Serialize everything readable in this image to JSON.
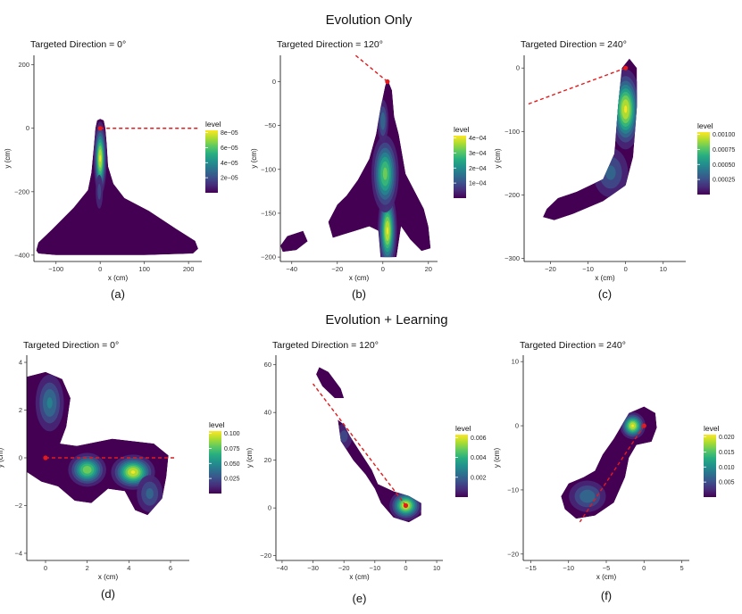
{
  "figure": {
    "section_titles": [
      "Evolution Only",
      "Evolution + Learning"
    ]
  },
  "chart_data": [
    {
      "type": "heatmap",
      "caption": "(a)",
      "title": "Targeted Direction = 0°",
      "xlabel": "x (cm)",
      "ylabel": "y (cm)",
      "xlim": [
        -150,
        230
      ],
      "ylim": [
        -420,
        230
      ],
      "xticks": [
        -100,
        0,
        100,
        200
      ],
      "yticks": [
        -400,
        -200,
        0,
        200
      ],
      "xtick_labels": [
        "−100",
        "0",
        "100",
        "200"
      ],
      "ytick_labels": [
        "−400",
        "−200",
        "0",
        "200"
      ],
      "legend": {
        "title": "level",
        "ticks": [
          "2e−05",
          "4e−05",
          "6e−05",
          "8e−05"
        ],
        "max": 9e-05
      },
      "density_region": [
        [
          -145,
          -385
        ],
        [
          -140,
          -395
        ],
        [
          -100,
          -400
        ],
        [
          0,
          -400
        ],
        [
          100,
          -400
        ],
        [
          210,
          -395
        ],
        [
          222,
          -380
        ],
        [
          215,
          -355
        ],
        [
          170,
          -315
        ],
        [
          110,
          -260
        ],
        [
          55,
          -220
        ],
        [
          30,
          -175
        ],
        [
          18,
          -120
        ],
        [
          15,
          -50
        ],
        [
          12,
          0
        ],
        [
          8,
          25
        ],
        [
          0,
          30
        ],
        [
          -7,
          25
        ],
        [
          -11,
          0
        ],
        [
          -14,
          -50
        ],
        [
          -20,
          -140
        ],
        [
          -28,
          -195
        ],
        [
          -60,
          -250
        ],
        [
          -110,
          -320
        ],
        [
          -140,
          -360
        ]
      ],
      "peaks": [
        {
          "x": 0,
          "y": -95,
          "sx": 7,
          "sy": 55,
          "level": 1.0
        },
        {
          "x": -2,
          "y": -200,
          "sx": 6,
          "sy": 40,
          "level": 0.25
        }
      ],
      "target_line": {
        "x": [
          0,
          225
        ],
        "y": [
          0,
          0
        ]
      },
      "start_point": {
        "x": 0,
        "y": 0
      }
    },
    {
      "type": "heatmap",
      "caption": "(b)",
      "title": "Targeted Direction = 120°",
      "xlabel": "x (cm)",
      "ylabel": "y (cm)",
      "xlim": [
        -45,
        24
      ],
      "ylim": [
        -205,
        30
      ],
      "xticks": [
        -40,
        -20,
        0,
        20
      ],
      "yticks": [
        -200,
        -150,
        -100,
        -50,
        0
      ],
      "xtick_labels": [
        "−40",
        "−20",
        "0",
        "20"
      ],
      "ytick_labels": [
        "−200",
        "−150",
        "−100",
        "−50",
        "0"
      ],
      "legend": {
        "title": "level",
        "ticks": [
          "1e−04",
          "2e−04",
          "3e−04",
          "4e−04"
        ],
        "max": 0.00045
      },
      "density_region": [
        [
          -6,
          -88
        ],
        [
          -3,
          -60
        ],
        [
          -1,
          -30
        ],
        [
          1,
          -5
        ],
        [
          2,
          3
        ],
        [
          4,
          -10
        ],
        [
          5,
          -40
        ],
        [
          7,
          -60
        ],
        [
          10,
          -105
        ],
        [
          14,
          -125
        ],
        [
          18,
          -145
        ],
        [
          20,
          -165
        ],
        [
          21,
          -190
        ],
        [
          17,
          -193
        ],
        [
          12,
          -180
        ],
        [
          8,
          -165
        ],
        [
          6,
          -200
        ],
        [
          -1,
          -200
        ],
        [
          -2,
          -170
        ],
        [
          -6,
          -165
        ],
        [
          -12,
          -170
        ],
        [
          -22,
          -178
        ],
        [
          -24,
          -160
        ],
        [
          -20,
          -140
        ],
        [
          -16,
          -130
        ],
        [
          -11,
          -112
        ]
      ],
      "extra_regions": [
        [
          [
            -45,
            -187
          ],
          [
            -42,
            -176
          ],
          [
            -35,
            -170
          ],
          [
            -33,
            -182
          ],
          [
            -38,
            -192
          ],
          [
            -44,
            -194
          ]
        ]
      ],
      "peaks": [
        {
          "x": 2,
          "y": -170,
          "sx": 2,
          "sy": 22,
          "level": 1.0
        },
        {
          "x": 1,
          "y": -105,
          "sx": 3,
          "sy": 22,
          "level": 0.8
        },
        {
          "x": 0,
          "y": -45,
          "sx": 1.5,
          "sy": 15,
          "level": 0.4
        }
      ],
      "target_line": {
        "x": [
          2,
          -12
        ],
        "y": [
          0,
          30
        ]
      },
      "start_point": {
        "x": 2,
        "y": 0
      }
    },
    {
      "type": "heatmap",
      "caption": "(c)",
      "title": "Targeted Direction = 240°",
      "xlabel": "x (cm)",
      "ylabel": "y (cm)",
      "xlim": [
        -27,
        16
      ],
      "ylim": [
        -305,
        20
      ],
      "xticks": [
        -20,
        -10,
        0,
        10
      ],
      "yticks": [
        -300,
        -200,
        -100,
        0
      ],
      "xtick_labels": [
        "−20",
        "−10",
        "0",
        "10"
      ],
      "ytick_labels": [
        "−300",
        "−200",
        "−100",
        "0"
      ],
      "legend": {
        "title": "level",
        "ticks": [
          "0.00025",
          "0.00050",
          "0.00075",
          "0.00100"
        ],
        "max": 0.00105
      },
      "density_region": [
        [
          -21,
          -222
        ],
        [
          -18,
          -205
        ],
        [
          -13,
          -195
        ],
        [
          -6,
          -175
        ],
        [
          -3,
          -135
        ],
        [
          -2,
          -60
        ],
        [
          -1,
          0
        ],
        [
          1,
          15
        ],
        [
          3,
          0
        ],
        [
          3,
          -60
        ],
        [
          2,
          -140
        ],
        [
          0,
          -185
        ],
        [
          -6,
          -210
        ],
        [
          -14,
          -230
        ],
        [
          -19,
          -240
        ],
        [
          -22,
          -235
        ]
      ],
      "peaks": [
        {
          "x": 0,
          "y": -65,
          "sx": 2,
          "sy": 30,
          "level": 1.0
        },
        {
          "x": -4,
          "y": -165,
          "sx": 3,
          "sy": 25,
          "level": 0.35
        }
      ],
      "target_line": {
        "x": [
          0,
          -26
        ],
        "y": [
          0,
          -57
        ]
      },
      "start_point": {
        "x": 0,
        "y": 0
      }
    },
    {
      "type": "heatmap",
      "caption": "(d)",
      "title": "Targeted Direction = 0°",
      "xlabel": "x (cm)",
      "ylabel": "y (cm)",
      "xlim": [
        -0.9,
        6.9
      ],
      "ylim": [
        -4.3,
        4.3
      ],
      "xticks": [
        0,
        2,
        4,
        6
      ],
      "yticks": [
        -4,
        -2,
        0,
        2,
        4
      ],
      "xtick_labels": [
        "0",
        "2",
        "4",
        "6"
      ],
      "ytick_labels": [
        "−4",
        "−2",
        "0",
        "2",
        "4"
      ],
      "legend": {
        "title": "level",
        "ticks": [
          "0.025",
          "0.050",
          "0.075",
          "0.100"
        ],
        "max": 0.105
      },
      "density_region": [
        [
          -0.9,
          3.4
        ],
        [
          0,
          3.6
        ],
        [
          0.8,
          3.3
        ],
        [
          1.2,
          2.5
        ],
        [
          1.0,
          1.3
        ],
        [
          0.7,
          0.6
        ],
        [
          1.5,
          0.5
        ],
        [
          3.2,
          0.8
        ],
        [
          5.2,
          0.6
        ],
        [
          5.9,
          0.1
        ],
        [
          5.8,
          -0.8
        ],
        [
          5.6,
          -1.7
        ],
        [
          4.9,
          -2.4
        ],
        [
          4.3,
          -2.2
        ],
        [
          3.8,
          -1.4
        ],
        [
          3.0,
          -1.3
        ],
        [
          2.2,
          -1.9
        ],
        [
          1.4,
          -1.8
        ],
        [
          0.6,
          -1.2
        ],
        [
          -0.2,
          -1.0
        ],
        [
          -0.9,
          -0.6
        ]
      ],
      "peaks": [
        {
          "x": 4.2,
          "y": -0.6,
          "sx": 0.5,
          "sy": 0.35,
          "level": 1.0
        },
        {
          "x": 2.0,
          "y": -0.5,
          "sx": 0.45,
          "sy": 0.35,
          "level": 0.85
        },
        {
          "x": 0.2,
          "y": 2.3,
          "sx": 0.4,
          "sy": 0.7,
          "level": 0.45
        },
        {
          "x": 5.0,
          "y": -1.5,
          "sx": 0.4,
          "sy": 0.5,
          "level": 0.35
        }
      ],
      "target_line": {
        "x": [
          0,
          6.2
        ],
        "y": [
          0,
          0
        ]
      },
      "start_point": {
        "x": 0,
        "y": 0
      }
    },
    {
      "type": "heatmap",
      "caption": "(e)",
      "title": "Targeted Direction = 120°",
      "xlabel": "x (cm)",
      "ylabel": "y (cm)",
      "xlim": [
        -42,
        12
      ],
      "ylim": [
        -22,
        64
      ],
      "xticks": [
        -40,
        -30,
        -20,
        -10,
        0,
        10
      ],
      "yticks": [
        -20,
        0,
        20,
        40,
        60
      ],
      "xtick_labels": [
        "−40",
        "−30",
        "−20",
        "−10",
        "0",
        "10"
      ],
      "ytick_labels": [
        "−20",
        "0",
        "20",
        "40",
        "60"
      ],
      "legend": {
        "title": "level",
        "ticks": [
          "0.002",
          "0.004",
          "0.006"
        ],
        "max": 0.0068
      },
      "density_region": [
        [
          -22,
          37
        ],
        [
          -20,
          35
        ],
        [
          -18,
          30
        ],
        [
          -15,
          24
        ],
        [
          -11,
          16
        ],
        [
          -9,
          10
        ],
        [
          -4,
          7
        ],
        [
          1,
          5
        ],
        [
          5,
          2
        ],
        [
          5,
          -3
        ],
        [
          1,
          -6
        ],
        [
          -4,
          -4
        ],
        [
          -8,
          2
        ],
        [
          -10,
          8
        ],
        [
          -13,
          14
        ],
        [
          -17,
          20
        ],
        [
          -21,
          28
        ]
      ],
      "extra_regions": [
        [
          [
            -28,
            59
          ],
          [
            -25,
            57
          ],
          [
            -21,
            50
          ],
          [
            -20,
            46
          ],
          [
            -23,
            46
          ],
          [
            -27,
            51
          ],
          [
            -29,
            56
          ]
        ]
      ],
      "peaks": [
        {
          "x": 0,
          "y": 1,
          "sx": 2.5,
          "sy": 3,
          "level": 1.0
        },
        {
          "x": -20,
          "y": 30,
          "sx": 2,
          "sy": 4,
          "level": 0.25
        }
      ],
      "target_line": {
        "x": [
          0,
          -30
        ],
        "y": [
          1,
          52
        ]
      },
      "start_point": {
        "x": 0,
        "y": 1
      }
    },
    {
      "type": "heatmap",
      "caption": "(f)",
      "title": "Targeted Direction = 240°",
      "xlabel": "x (cm)",
      "ylabel": "y (cm)",
      "xlim": [
        -16,
        6
      ],
      "ylim": [
        -21,
        11
      ],
      "xticks": [
        -15,
        -10,
        -5,
        0,
        5
      ],
      "yticks": [
        -20,
        -10,
        0,
        10
      ],
      "xtick_labels": [
        "−15",
        "−10",
        "−5",
        "0",
        "5"
      ],
      "ytick_labels": [
        "−20",
        "−10",
        "0",
        "10"
      ],
      "legend": {
        "title": "level",
        "ticks": [
          "0.005",
          "0.010",
          "0.015",
          "0.020"
        ],
        "max": 0.0215
      },
      "density_region": [
        [
          -10.5,
          -13
        ],
        [
          -11,
          -11
        ],
        [
          -10,
          -9
        ],
        [
          -8,
          -8
        ],
        [
          -6.5,
          -7
        ],
        [
          -5.5,
          -4.5
        ],
        [
          -4,
          -2
        ],
        [
          -2,
          2
        ],
        [
          0,
          3
        ],
        [
          1.5,
          2
        ],
        [
          1.7,
          -0.3
        ],
        [
          1,
          -2.5
        ],
        [
          -1,
          -3
        ],
        [
          -2,
          -5
        ],
        [
          -2.5,
          -8
        ],
        [
          -4,
          -12
        ],
        [
          -6.5,
          -14
        ],
        [
          -9,
          -14.5
        ]
      ],
      "peaks": [
        {
          "x": -1.5,
          "y": 0,
          "sx": 0.8,
          "sy": 1,
          "level": 1.0
        },
        {
          "x": -7.5,
          "y": -11,
          "sx": 1.5,
          "sy": 1.5,
          "level": 0.4
        }
      ],
      "target_line": {
        "x": [
          0,
          -8.5
        ],
        "y": [
          0,
          -15
        ]
      },
      "start_point": {
        "x": 0,
        "y": 0
      }
    }
  ]
}
